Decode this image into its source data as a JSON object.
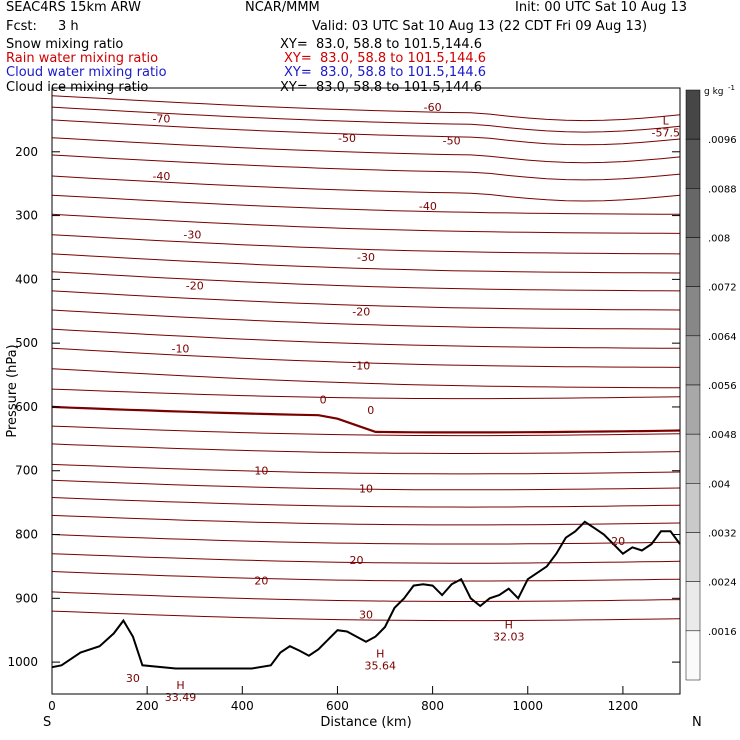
{
  "header": {
    "model": "SEAC4RS 15km ARW",
    "center": "NCAR/MMM",
    "init": "Init: 00 UTC Sat 10 Aug 13",
    "fcst_label": "Fcst:",
    "fcst_value": "3 h",
    "valid": "Valid: 03 UTC Sat 10 Aug 13 (22 CDT Fri 09 Aug 13)"
  },
  "fields": [
    {
      "label": "Snow mixing ratio",
      "xy": "XY=  83.0, 58.8 to 101.5,144.6",
      "color": "#000000"
    },
    {
      "label": "Rain water mixing ratio",
      "xy": "XY=  83.0, 58.8 to 101.5,144.6",
      "color": "#d00000"
    },
    {
      "label": "Cloud water mixing ratio",
      "xy": "XY=  83.0, 58.8 to 101.5,144.6",
      "color": "#1a1acc"
    },
    {
      "label": "Cloud ice mixing ratio",
      "xy": "XY=  83.0, 58.8 to 101.5,144.6",
      "color": "#000000"
    }
  ],
  "chart_data": {
    "type": "contour cross-section",
    "xlabel": "Distance (km)",
    "ylabel": "Pressure (hPa)",
    "xlim": [
      0,
      1320
    ],
    "ylim": [
      1050,
      100
    ],
    "x_ticks": [
      0,
      200,
      400,
      600,
      800,
      1000,
      1200
    ],
    "y_ticks": [
      200,
      300,
      400,
      500,
      600,
      700,
      800,
      900,
      1000
    ],
    "y_tick_labels": [
      "200",
      "300",
      "400",
      "500",
      "600",
      "700",
      "800",
      "900",
      "1000"
    ],
    "x_tick_labels": [
      "0",
      "200",
      "400",
      "600",
      "800",
      "1000",
      "1200"
    ],
    "endpoints": {
      "left": "S",
      "right": "N"
    },
    "contour_color": "#7a0000",
    "zero_contour_color": "#7a0000",
    "temperature_contour_labels": [
      {
        "text": "-70",
        "x": 230,
        "p": 148
      },
      {
        "text": "-60",
        "x": 800,
        "p": 130
      },
      {
        "text": "-50",
        "x": 620,
        "p": 178
      },
      {
        "text": "-50",
        "x": 840,
        "p": 182
      },
      {
        "text": "-40",
        "x": 230,
        "p": 238
      },
      {
        "text": "-40",
        "x": 790,
        "p": 285
      },
      {
        "text": "-30",
        "x": 295,
        "p": 330
      },
      {
        "text": "-30",
        "x": 660,
        "p": 365
      },
      {
        "text": "-20",
        "x": 300,
        "p": 410
      },
      {
        "text": "-20",
        "x": 650,
        "p": 450
      },
      {
        "text": "-10",
        "x": 270,
        "p": 508
      },
      {
        "text": "-10",
        "x": 650,
        "p": 535
      },
      {
        "text": "0",
        "x": 570,
        "p": 588
      },
      {
        "text": "0",
        "x": 670,
        "p": 605
      },
      {
        "text": "10",
        "x": 440,
        "p": 700
      },
      {
        "text": "10",
        "x": 660,
        "p": 728
      },
      {
        "text": "20",
        "x": 640,
        "p": 840
      },
      {
        "text": "20",
        "x": 440,
        "p": 872
      },
      {
        "text": "20",
        "x": 1190,
        "p": 810
      },
      {
        "text": "30",
        "x": 660,
        "p": 925
      },
      {
        "text": "30",
        "x": 170,
        "p": 1025
      }
    ],
    "highs_lows": [
      {
        "symbol": "L",
        "value": "-57.5",
        "x": 1290,
        "p": 170
      },
      {
        "symbol": "H",
        "value": "33.49",
        "x": 270,
        "p": 1055
      },
      {
        "symbol": "H",
        "value": "35.64",
        "x": 690,
        "p": 1005
      },
      {
        "symbol": "H",
        "value": "32.03",
        "x": 960,
        "p": 960
      }
    ],
    "terrain": {
      "x": [
        0,
        20,
        60,
        100,
        130,
        150,
        170,
        190,
        260,
        320,
        420,
        460,
        480,
        500,
        520,
        540,
        560,
        580,
        600,
        620,
        640,
        660,
        680,
        700,
        720,
        740,
        760,
        780,
        800,
        820,
        840,
        860,
        880,
        900,
        920,
        940,
        960,
        980,
        1000,
        1020,
        1040,
        1060,
        1080,
        1100,
        1120,
        1140,
        1160,
        1180,
        1200,
        1220,
        1240,
        1260,
        1280,
        1300,
        1320
      ],
      "p": [
        1008,
        1005,
        985,
        975,
        955,
        935,
        960,
        1005,
        1010,
        1010,
        1010,
        1005,
        985,
        975,
        982,
        990,
        980,
        965,
        950,
        952,
        960,
        968,
        960,
        945,
        915,
        900,
        880,
        878,
        880,
        895,
        878,
        870,
        900,
        912,
        900,
        895,
        885,
        900,
        870,
        860,
        850,
        830,
        805,
        795,
        780,
        790,
        800,
        815,
        830,
        820,
        825,
        815,
        795,
        795,
        815
      ]
    },
    "colorbar": {
      "unit": "g kg",
      "unit_exp": "-1",
      "labels": [
        ".0096",
        ".0088",
        ".008",
        ".0072",
        ".0064",
        ".0056",
        ".0048",
        ".004",
        ".0032",
        ".0024",
        ".0016"
      ]
    }
  }
}
